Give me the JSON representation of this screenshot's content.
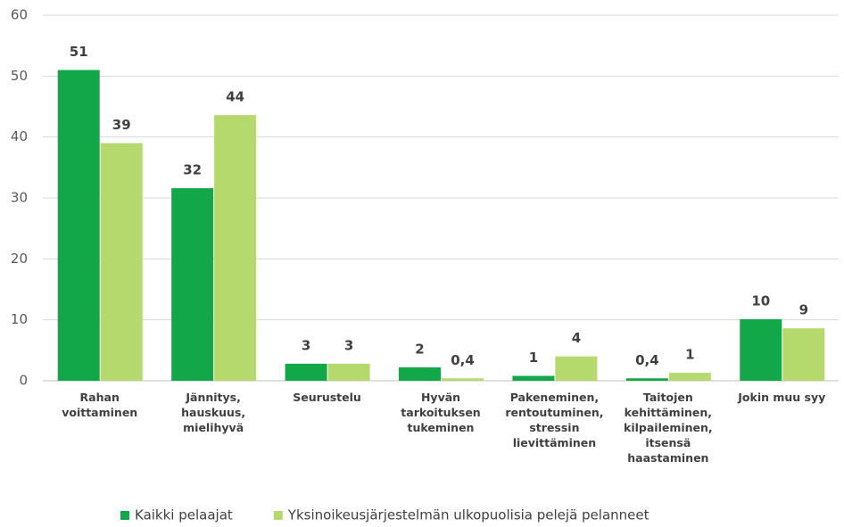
{
  "chart_data": {
    "type": "bar",
    "categories": [
      "Rahan\nvoittaminen",
      "Jännitys,\nhauskuus,\nmielihyvä",
      "Seurustelu",
      "Hyvän\ntarkoituksen\ntukeminen",
      "Pakeneminen,\nrentoutuminen,\nstressin\nlievittäminen",
      "Taitojen\nkehittäminen,\nkilpaileminen,\nitsensä\nhaastaminen",
      "Jokin muu syy"
    ],
    "series": [
      {
        "name": "Kaikki pelaajat",
        "color": "#12a84a",
        "values": [
          51,
          31.6,
          2.8,
          2.2,
          0.8,
          0.4,
          10.1
        ],
        "value_labels": [
          "51",
          "32",
          "3",
          "2",
          "1",
          "0,4",
          "10"
        ]
      },
      {
        "name": "Yksinoikeusjärjestelmän ulkopuolisia pelejä pelanneet",
        "color": "#b5d96c",
        "values": [
          39,
          43.6,
          2.8,
          0.4,
          4,
          1.3,
          8.6
        ],
        "value_labels": [
          "39",
          "44",
          "3",
          "0,4",
          "4",
          "1",
          "9"
        ]
      }
    ],
    "ylim": [
      0,
      60
    ],
    "yticks": [
      0,
      10,
      20,
      30,
      40,
      50,
      60
    ],
    "grid": true,
    "legend": "bottom"
  }
}
